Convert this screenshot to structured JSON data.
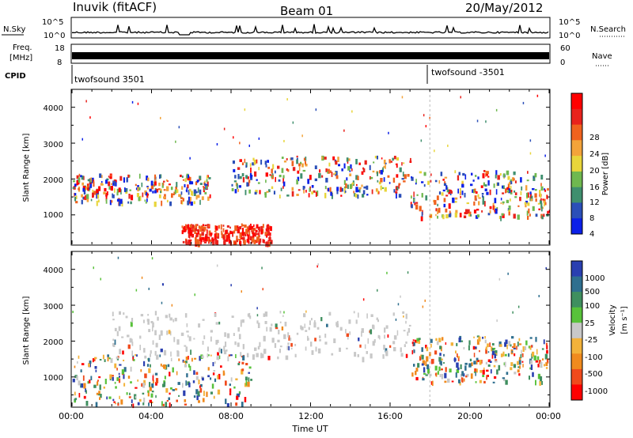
{
  "header": {
    "station": "Inuvik (fitACF)",
    "beam": "Beam 01",
    "date": "20/May/2012"
  },
  "status_panels": {
    "nsky_label": "N.Sky",
    "nsky_ticks": [
      "10^5",
      "10^0"
    ],
    "nsearch_label": "N.Search",
    "nsearch_ticks": [
      "10^5",
      "10^0"
    ],
    "freq_label_1": "Freq.",
    "freq_label_2": "[MHz]",
    "freq_ticks": [
      "18",
      "8"
    ],
    "nave_label": "Nave",
    "nave_ticks": [
      "60",
      "0"
    ],
    "cpid_label": "CPID",
    "cpid_modes": [
      {
        "name": "twofsound 3501",
        "start_hour": 0
      },
      {
        "name": "twofsound -3501",
        "start_hour": 18.0
      }
    ]
  },
  "chart_data": [
    {
      "type": "heatmap",
      "panel": "power",
      "ylabel": "Slant Range [km]",
      "ylim": [
        180,
        4500
      ],
      "y_ticks": [
        "1000",
        "2000",
        "3000",
        "4000"
      ],
      "xlim_hours": [
        0,
        24
      ],
      "x_ticks": [
        "00:00",
        "04:00",
        "08:00",
        "12:00",
        "16:00",
        "20:00",
        "00:00"
      ],
      "colorbar_label": "Power [dB]",
      "colorbar_ticks": [
        "4",
        "8",
        "12",
        "16",
        "20",
        "24",
        "28"
      ],
      "colorbar_colors": [
        "#0b20e8",
        "#2b4fb8",
        "#3f8f6e",
        "#6fb84f",
        "#e8d53a",
        "#f3a33a",
        "#f0621e",
        "#e8221c",
        "#ff0000"
      ],
      "regions": [
        {
          "from_hour": 0.0,
          "to_hour": 7.0,
          "range_from": 1300,
          "range_to": 2100,
          "level": "mixed"
        },
        {
          "from_hour": 5.5,
          "to_hour": 10.0,
          "range_from": 180,
          "range_to": 700,
          "level": "high"
        },
        {
          "from_hour": 8.0,
          "to_hour": 17.0,
          "range_from": 1500,
          "range_to": 2600,
          "level": "mixed"
        },
        {
          "from_hour": 17.0,
          "to_hour": 24.0,
          "range_from": 900,
          "range_to": 2200,
          "level": "mixed"
        }
      ]
    },
    {
      "type": "heatmap",
      "panel": "velocity",
      "ylabel": "Slant Range [km]",
      "ylim": [
        180,
        4500
      ],
      "y_ticks": [
        "1000",
        "2000",
        "3000",
        "4000"
      ],
      "xlim_hours": [
        0,
        24
      ],
      "x_ticks": [
        "00:00",
        "04:00",
        "08:00",
        "12:00",
        "16:00",
        "20:00",
        "00:00"
      ],
      "xlabel": "Time UT",
      "colorbar_label": "Velocity",
      "colorbar_unit": "[m s⁻¹]",
      "colorbar_ticks": [
        "1000",
        "500",
        "100",
        "25",
        "-25",
        "-100",
        "-500",
        "-1000"
      ],
      "colorbar_colors": [
        "#2a3fb0",
        "#2f6f8f",
        "#3f8f5f",
        "#58c23a",
        "#c8c8c8",
        "#f3b23a",
        "#f08a1e",
        "#f04a1c",
        "#ff0000"
      ],
      "regions": [
        {
          "from_hour": 0.0,
          "to_hour": 9.0,
          "range_from": 180,
          "range_to": 1600,
          "level": "mixed"
        },
        {
          "from_hour": 2.0,
          "to_hour": 17.0,
          "range_from": 1500,
          "range_to": 2800,
          "level": "ground"
        },
        {
          "from_hour": 17.0,
          "to_hour": 24.0,
          "range_from": 800,
          "range_to": 2100,
          "level": "mixed"
        }
      ]
    }
  ]
}
